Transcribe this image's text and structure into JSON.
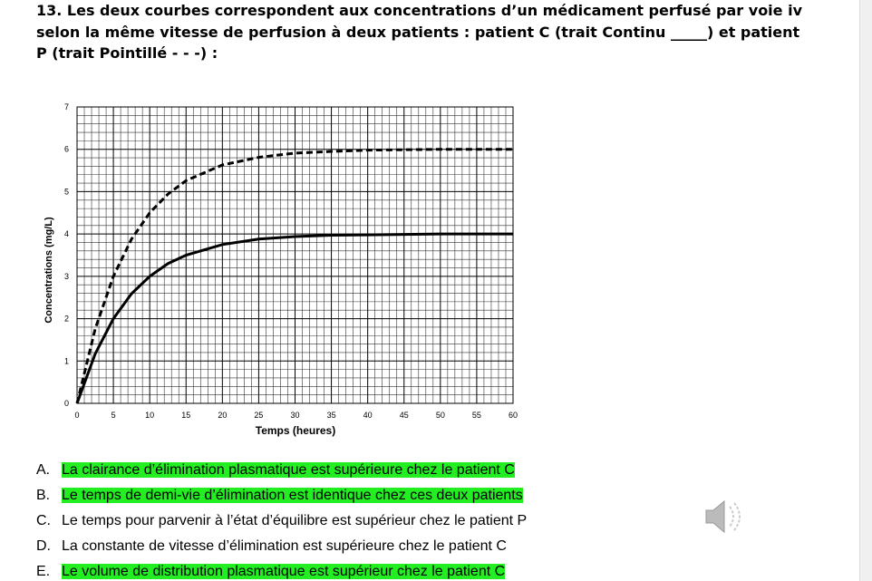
{
  "question": "13. Les deux courbes correspondent aux concentrations d’un médicament perfusé par voie iv selon la même vitesse de perfusion à deux patients : patient C (trait Continu _____) et patient P (trait Pointillé - - -) :",
  "chart_data": {
    "type": "line",
    "xlabel": "Temps (heures)",
    "ylabel": "Concentrations (mg/L)",
    "x": [
      0,
      2.5,
      5,
      7.5,
      10,
      12.5,
      15,
      20,
      25,
      30,
      35,
      40,
      45,
      50,
      55,
      60
    ],
    "series": [
      {
        "style": "solid",
        "color": "#000000",
        "values": [
          0,
          1.17,
          2.0,
          2.59,
          3.0,
          3.3,
          3.5,
          3.75,
          3.88,
          3.94,
          3.97,
          3.98,
          3.99,
          4.0,
          4.0,
          4.0
        ]
      },
      {
        "style": "dashed",
        "color": "#000000",
        "values": [
          0,
          1.76,
          3.0,
          3.88,
          4.5,
          4.94,
          5.26,
          5.63,
          5.81,
          5.91,
          5.95,
          5.98,
          5.99,
          6.0,
          6.0,
          6.0
        ]
      }
    ],
    "xlim": [
      0,
      60
    ],
    "xticks": [
      0,
      5,
      10,
      15,
      20,
      25,
      30,
      35,
      40,
      45,
      50,
      55,
      60
    ],
    "ylim": [
      0,
      7
    ],
    "yticks": [
      0,
      1,
      2,
      3,
      4,
      5,
      6,
      7
    ],
    "grid": true
  },
  "options": [
    {
      "letter": "A.",
      "text": "La clairance d’élimination plasmatique est supérieure chez le patient C",
      "highlighted": true
    },
    {
      "letter": "B.",
      "text": "Le temps de demi-vie d’élimination est identique chez ces deux patients",
      "highlighted": true
    },
    {
      "letter": "C.",
      "text": "Le temps pour parvenir à l’état d’équilibre est supérieur chez le patient P",
      "highlighted": false
    },
    {
      "letter": "D.",
      "text": "La constante de vitesse d’élimination est supérieure chez le patient C",
      "highlighted": false
    },
    {
      "letter": "E.",
      "text": "Le volume de distribution plasmatique est supérieur chez le patient C",
      "highlighted": true
    }
  ]
}
